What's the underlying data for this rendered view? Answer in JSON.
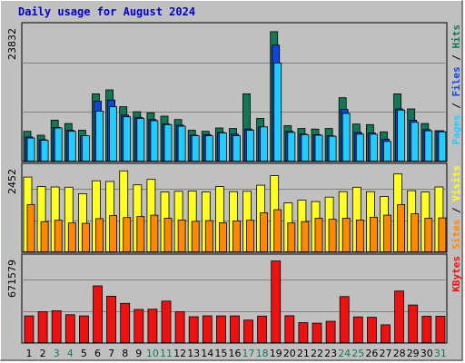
{
  "chart_title": "Daily usage for August 2024",
  "colors": {
    "pages": "#22ccff",
    "files": "#1144dd",
    "hits": "#117755",
    "visits": "#ffff22",
    "sites": "#ff8800",
    "kbytes": "#ee1111",
    "weekend_label": "#117755",
    "weekday_label": "#000000"
  },
  "chart_data": [
    {
      "type": "bar",
      "panel": "hits-files-pages",
      "ymax_label": "23832",
      "ylim": [
        0,
        23832
      ],
      "legend": [
        "Pages",
        "Files",
        "Hits"
      ],
      "categories": [
        "1",
        "2",
        "3",
        "4",
        "5",
        "6",
        "7",
        "8",
        "9",
        "10",
        "11",
        "12",
        "13",
        "14",
        "15",
        "16",
        "17",
        "18",
        "19",
        "20",
        "21",
        "22",
        "23",
        "24",
        "25",
        "26",
        "27",
        "28",
        "29",
        "30",
        "31"
      ],
      "series": [
        {
          "name": "Hits",
          "values": [
            5400,
            4700,
            7400,
            6800,
            5600,
            12100,
            12800,
            9800,
            8900,
            8700,
            8100,
            7500,
            5600,
            5400,
            6000,
            5900,
            12100,
            7700,
            23200,
            6400,
            5900,
            5800,
            5900,
            11400,
            6700,
            6600,
            5300,
            12100,
            9400,
            6800,
            5500
          ]
        },
        {
          "name": "Files",
          "values": [
            4400,
            3900,
            6100,
            5600,
            4600,
            10800,
            11000,
            8300,
            7900,
            7500,
            6700,
            6500,
            4700,
            4800,
            5200,
            4900,
            5800,
            6200,
            20800,
            5400,
            4900,
            4800,
            4600,
            9300,
            5200,
            5100,
            4000,
            9400,
            7400,
            5700,
            5500
          ]
        },
        {
          "name": "Pages",
          "values": [
            4200,
            3800,
            6000,
            5400,
            4600,
            9000,
            9800,
            8000,
            7700,
            7300,
            6600,
            6300,
            4600,
            4600,
            5100,
            4600,
            5600,
            6200,
            17600,
            5200,
            4800,
            4700,
            4500,
            8600,
            4900,
            4900,
            3600,
            9200,
            7000,
            5500,
            5300
          ]
        }
      ]
    },
    {
      "type": "bar",
      "panel": "visits-sites",
      "ymax_label": "2452",
      "ylim": [
        0,
        2452
      ],
      "legend": [
        "Sites",
        "Visits"
      ],
      "categories": [
        "1",
        "2",
        "3",
        "4",
        "5",
        "6",
        "7",
        "8",
        "9",
        "10",
        "11",
        "12",
        "13",
        "14",
        "15",
        "16",
        "17",
        "18",
        "19",
        "20",
        "21",
        "22",
        "23",
        "24",
        "25",
        "26",
        "27",
        "28",
        "29",
        "30",
        "31"
      ],
      "series": [
        {
          "name": "Visits",
          "values": [
            2210,
            1930,
            1920,
            1910,
            1720,
            2100,
            2080,
            2390,
            1980,
            2140,
            1770,
            1790,
            1800,
            1770,
            1930,
            1780,
            1790,
            1970,
            2250,
            1450,
            1530,
            1490,
            1620,
            1780,
            1910,
            1780,
            1640,
            2300,
            1810,
            1770,
            1920
          ]
        },
        {
          "name": "Sites",
          "values": [
            1400,
            900,
            940,
            860,
            850,
            990,
            1080,
            1020,
            1050,
            1090,
            1000,
            950,
            910,
            930,
            870,
            920,
            940,
            1160,
            1250,
            860,
            900,
            1000,
            970,
            1000,
            950,
            1030,
            1090,
            1400,
            1130,
            1000,
            1010
          ]
        }
      ]
    },
    {
      "type": "bar",
      "panel": "kbytes",
      "ymax_label": "671579",
      "ylim": [
        0,
        671579
      ],
      "legend": [
        "KBytes"
      ],
      "categories": [
        "1",
        "2",
        "3",
        "4",
        "5",
        "6",
        "7",
        "8",
        "9",
        "10",
        "11",
        "12",
        "13",
        "14",
        "15",
        "16",
        "17",
        "18",
        "19",
        "20",
        "21",
        "22",
        "23",
        "24",
        "25",
        "26",
        "27",
        "28",
        "29",
        "30",
        "31"
      ],
      "series": [
        {
          "name": "KBytes",
          "values": [
            218000,
            252000,
            260000,
            228000,
            218000,
            460000,
            377000,
            319000,
            270000,
            272000,
            337000,
            251000,
            212000,
            219000,
            218000,
            218000,
            185000,
            217000,
            660000,
            220000,
            164000,
            160000,
            175000,
            374000,
            210000,
            207000,
            147000,
            418000,
            306000,
            215000,
            215000
          ]
        }
      ]
    }
  ]
}
